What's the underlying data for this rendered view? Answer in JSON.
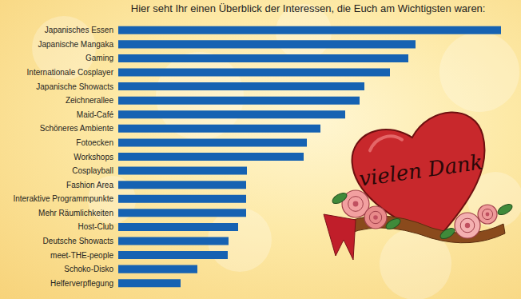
{
  "chart_data": {
    "type": "bar",
    "orientation": "horizontal",
    "title": "Hier seht Ihr einen Überblick der Interessen, die Euch am Wichtigsten waren:",
    "categories": [
      "Japanisches Essen",
      "Japanische Mangaka",
      "Gaming",
      "Internationale Cosplayer",
      "Japanische Showacts",
      "Zeichnerallee",
      "Maid-Café",
      "Schöneres Ambiente",
      "Fotoecken",
      "Workshops",
      "Cosplayball",
      "Fashion Area",
      "Interaktive Programmpunkte",
      "Mehr Räumlichkeiten",
      "Host-Club",
      "Deutsche Showacts",
      "meet-THE-people",
      "Schoko-Disko",
      "Helferverpflegung"
    ],
    "values": [
      479,
      372,
      363,
      340,
      308,
      302,
      284,
      253,
      236,
      232,
      161,
      160,
      160,
      160,
      150,
      138,
      137,
      99,
      78
    ],
    "color": "#1662b2",
    "xlim": [
      0,
      479
    ],
    "tick_labels": "y",
    "grid": false,
    "annotations": [
      "vielen Dank"
    ]
  }
}
